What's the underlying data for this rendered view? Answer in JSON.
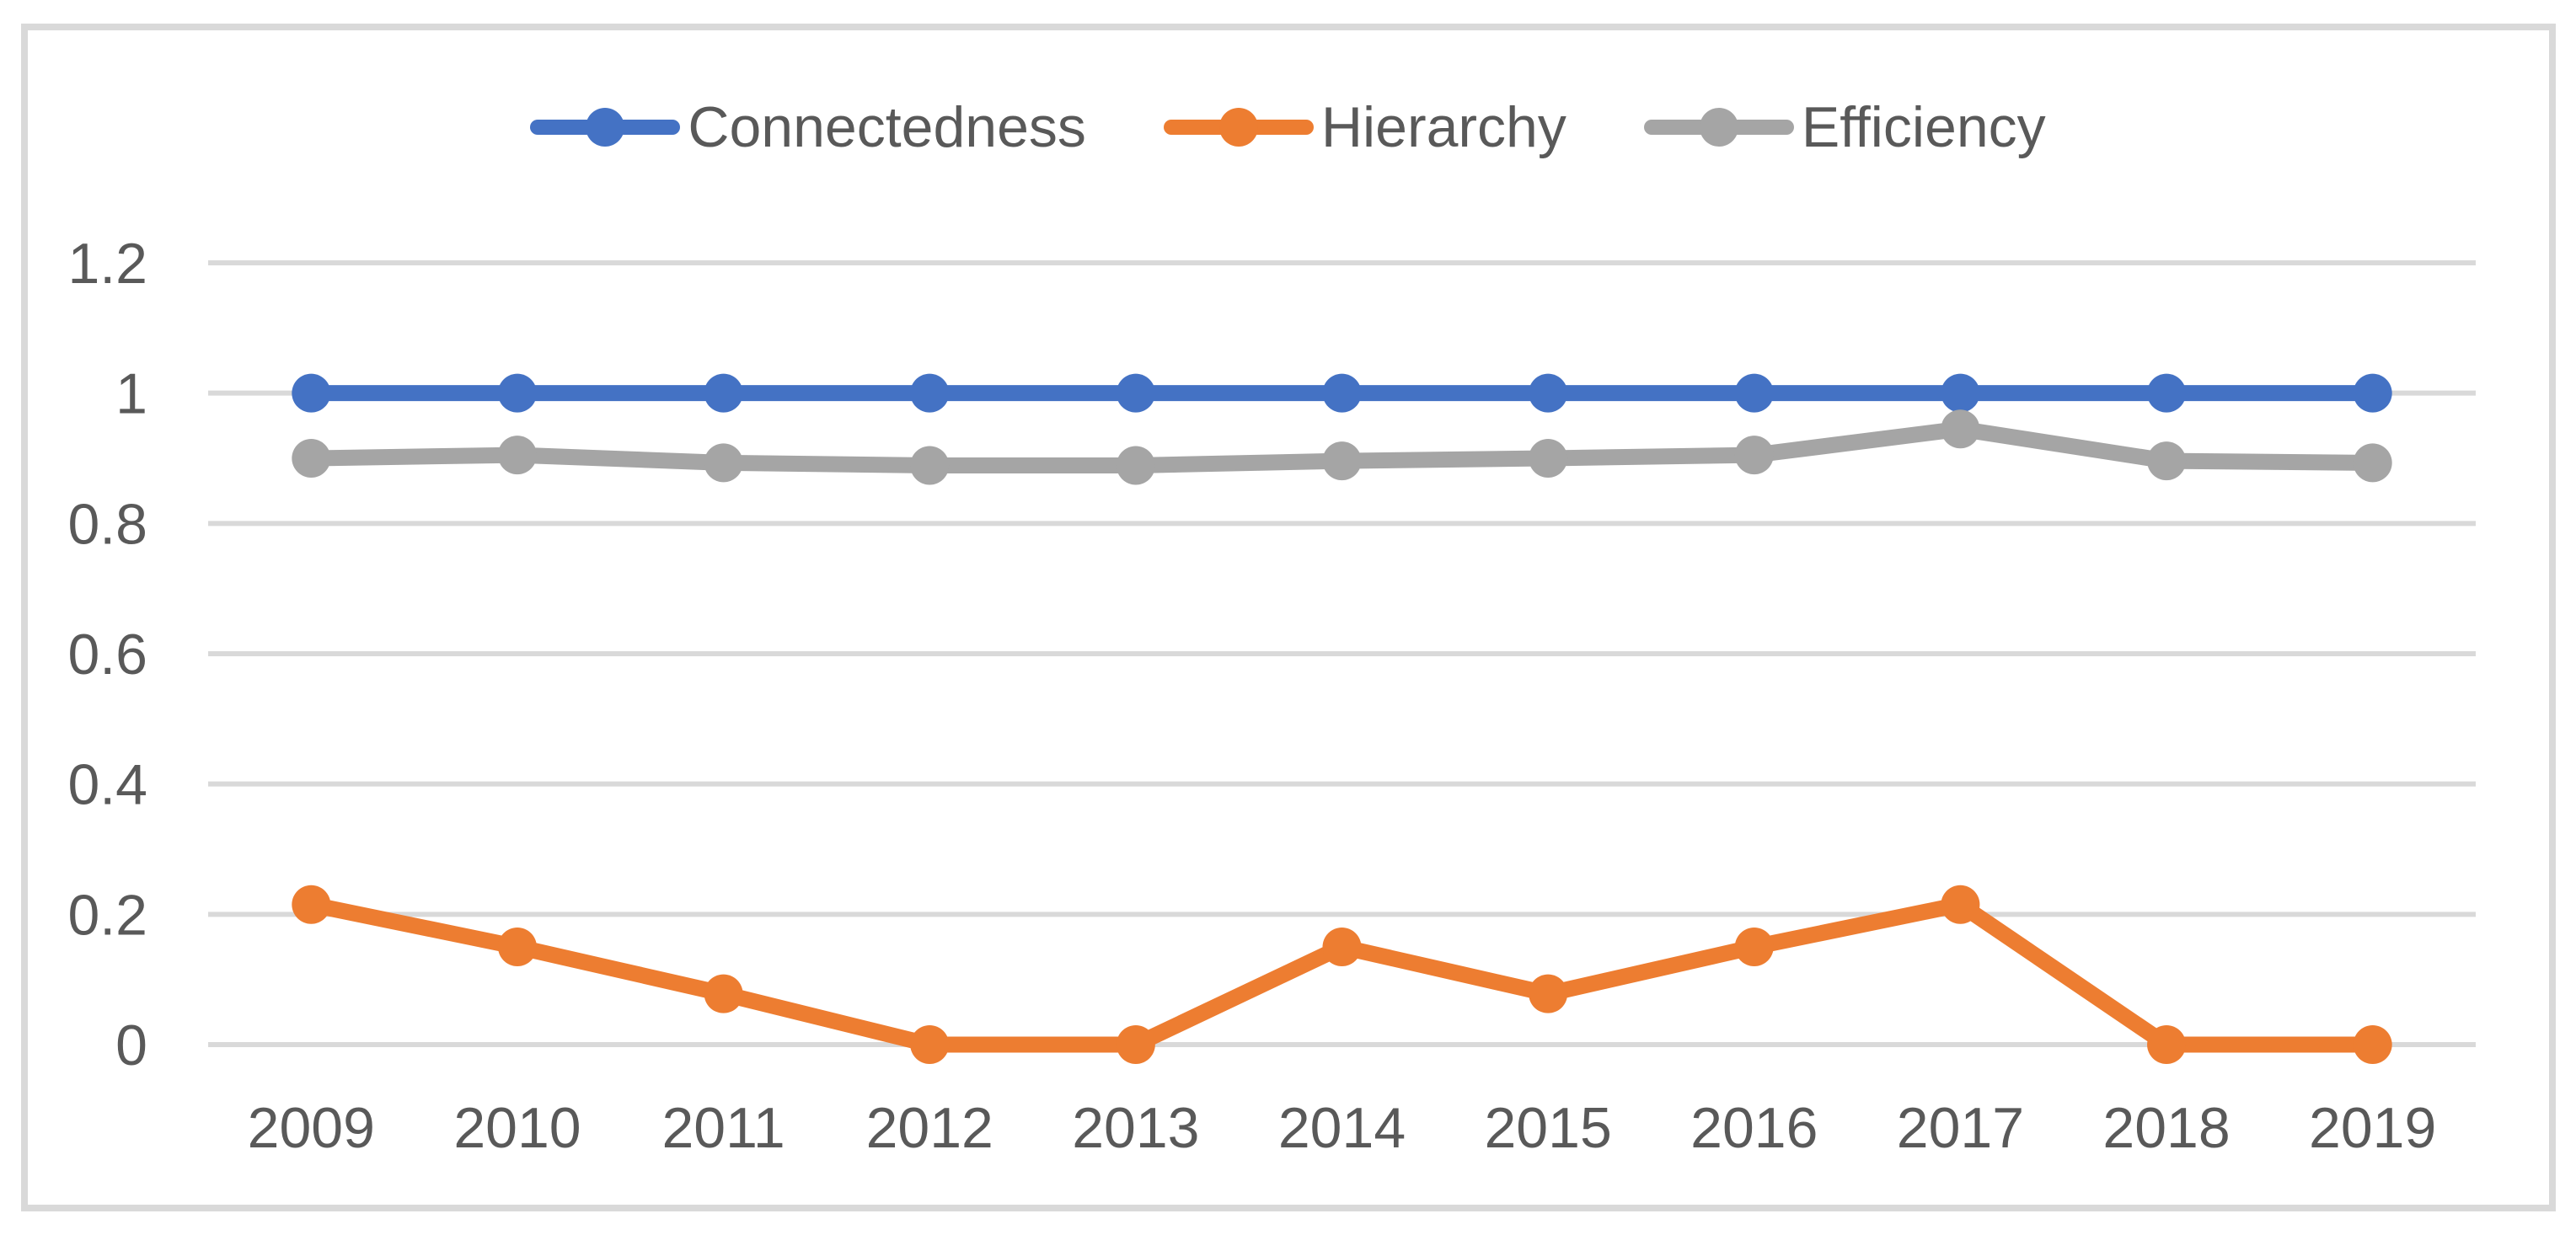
{
  "chart_data": {
    "type": "line",
    "title": "",
    "categories": [
      "2009",
      "2010",
      "2011",
      "2012",
      "2013",
      "2014",
      "2015",
      "2016",
      "2017",
      "2018",
      "2019"
    ],
    "series": [
      {
        "name": "Connectedness",
        "color": "#4472C4",
        "values": [
          1,
          1,
          1,
          1,
          1,
          1,
          1,
          1,
          1,
          1,
          1
        ]
      },
      {
        "name": "Hierarchy",
        "color": "#ED7D31",
        "values": [
          0.215,
          0.15,
          0.078,
          0,
          0,
          0.15,
          0.078,
          0.15,
          0.215,
          0,
          0
        ]
      },
      {
        "name": "Efficiency",
        "color": "#A5A5A5",
        "values": [
          0.9,
          0.905,
          0.893,
          0.889,
          0.889,
          0.896,
          0.9,
          0.905,
          0.945,
          0.896,
          0.893
        ]
      }
    ],
    "xlabel": "",
    "ylabel": "",
    "ylim": [
      0,
      1.2
    ],
    "y_tick_labels": [
      "1.2",
      "1",
      "0.8",
      "0.6",
      "0.4",
      "0.2",
      "0"
    ],
    "y_tick_values": [
      1.2,
      1,
      0.8,
      0.6,
      0.4,
      0.2,
      0
    ],
    "grid": "horizontal",
    "legend_position": "top-center",
    "marker_style": "circle",
    "colors": {
      "gridline": "#D9D9D9",
      "frame_border": "#D9D9D9",
      "tick_text": "#595959",
      "background": "#FFFFFF"
    }
  }
}
